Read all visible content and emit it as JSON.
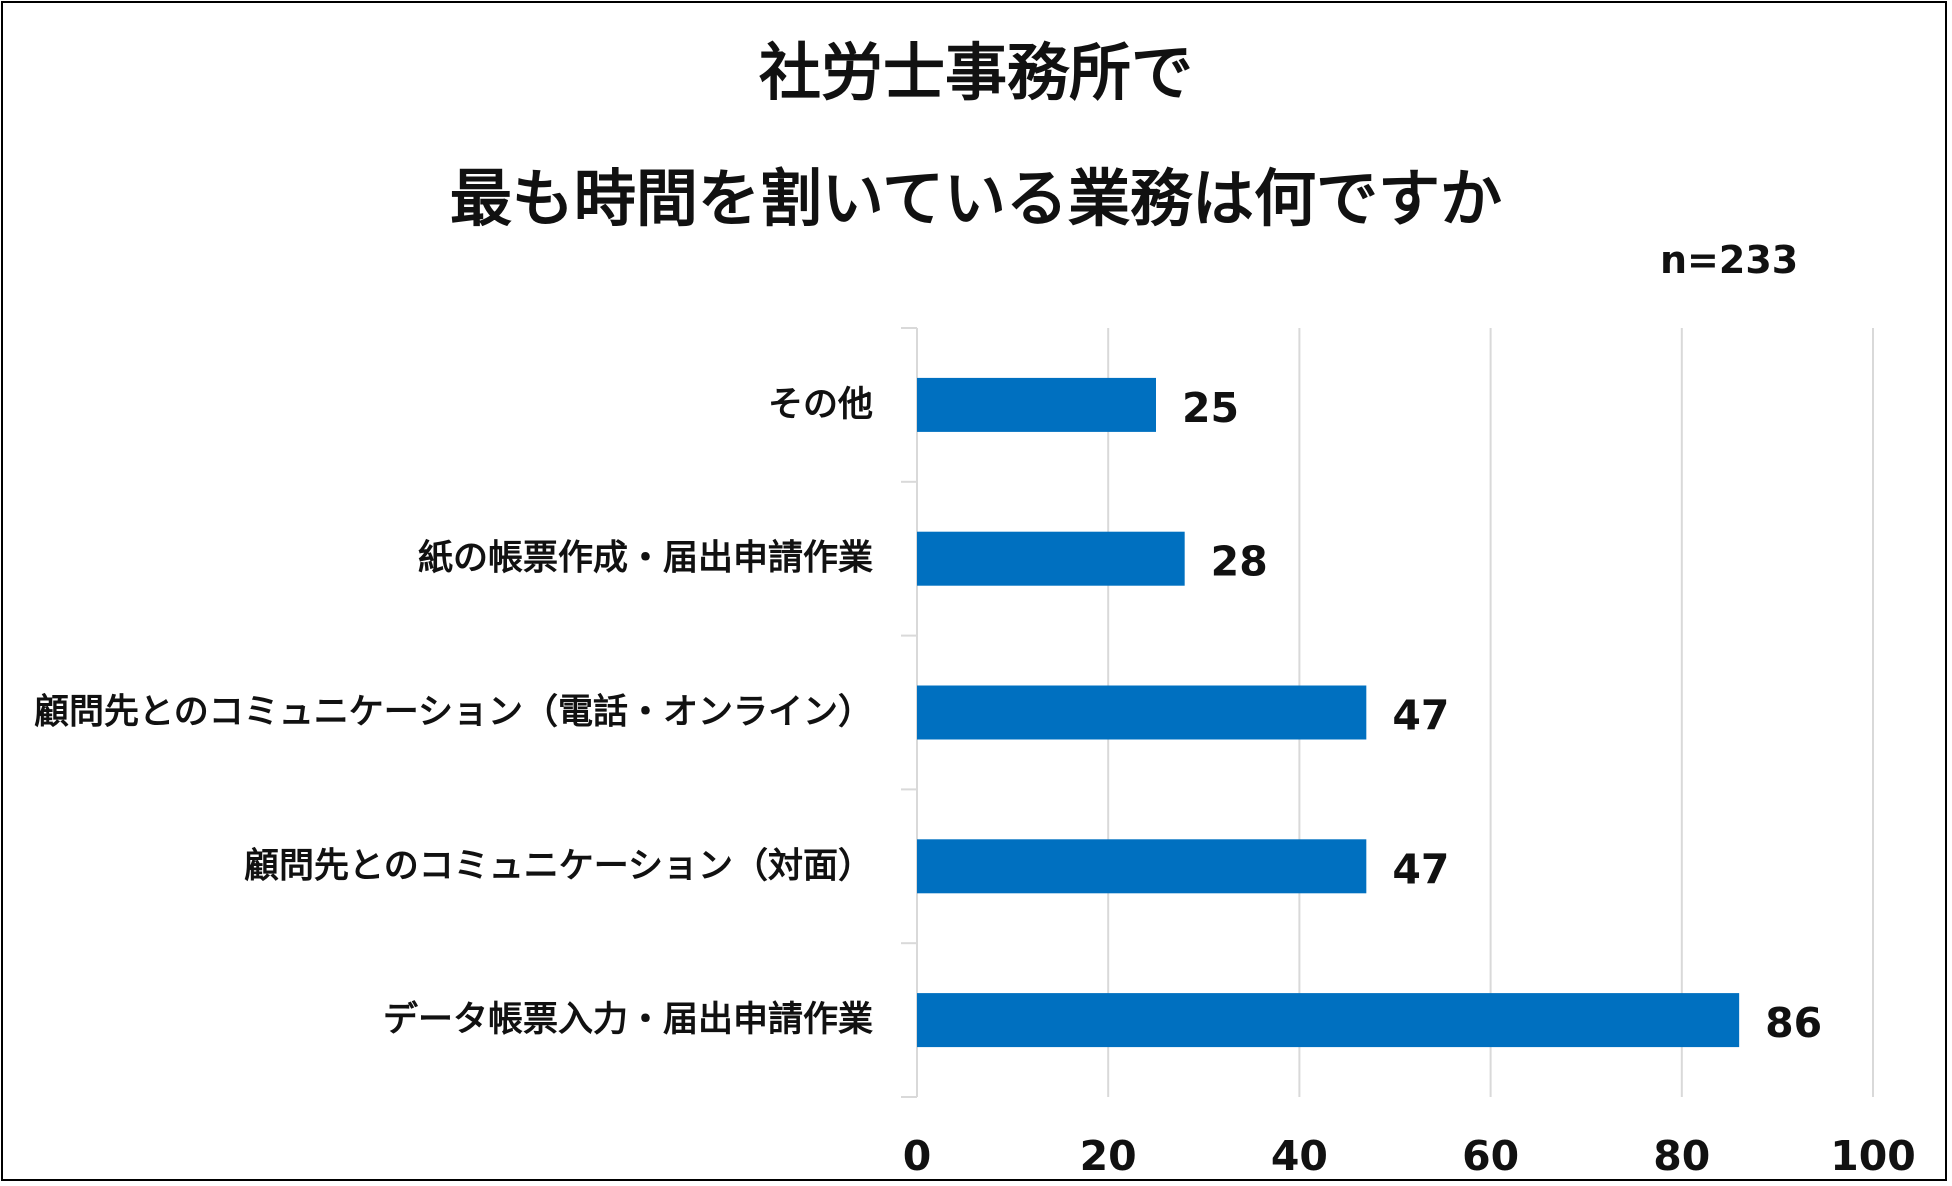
{
  "chart_data": {
    "type": "bar",
    "orientation": "horizontal",
    "title_lines": [
      "社労士事務所で",
      "最も時間を割いている業務は何ですか"
    ],
    "sample_note": "n=233",
    "categories": [
      "その他",
      "紙の帳票作成・届出申請作業",
      "顧問先とのコミュニケーション（電話・オンライン）",
      "顧問先とのコミュニケーション（対面）",
      "データ帳票入力・届出申請作業"
    ],
    "values": [
      25,
      28,
      47,
      47,
      86
    ],
    "value_labels": [
      "25",
      "28",
      "47",
      "47",
      "86"
    ],
    "xlim": [
      0,
      100
    ],
    "x_ticks": [
      0,
      20,
      40,
      60,
      80,
      100
    ],
    "x_tick_labels": [
      "0",
      "20",
      "40",
      "60",
      "80",
      "100"
    ],
    "bar_color": "#0070C0",
    "grid_color": "#D9D9D9",
    "grid": true,
    "legend": "none"
  }
}
